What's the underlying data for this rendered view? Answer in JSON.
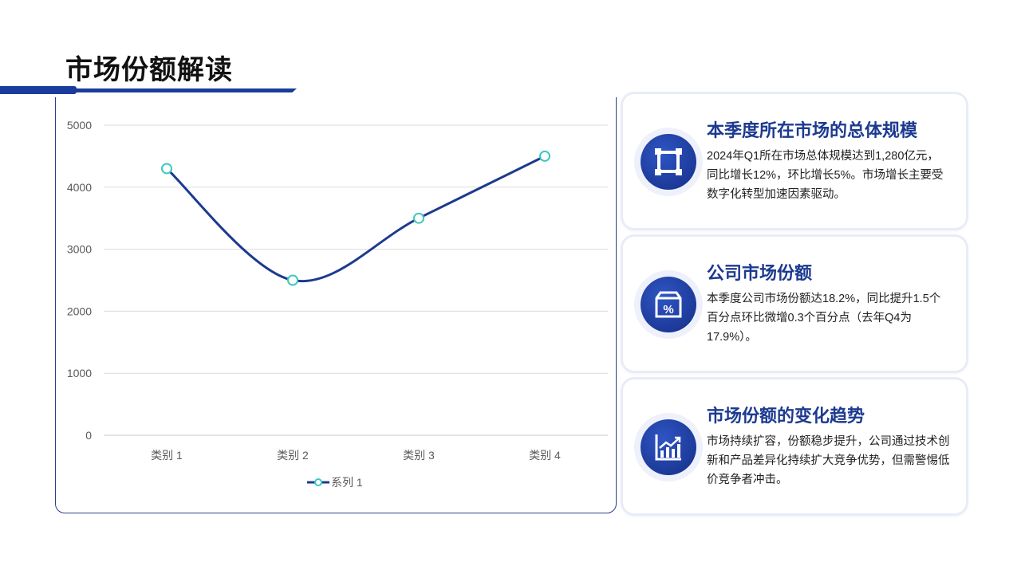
{
  "title": "市场份额解读",
  "chart_data": {
    "type": "line",
    "categories": [
      "类别 1",
      "类别 2",
      "类别 3",
      "类别 4"
    ],
    "series": [
      {
        "name": "系列 1",
        "values": [
          4300,
          2500,
          3500,
          4500
        ]
      }
    ],
    "ylim": [
      0,
      5000
    ],
    "yticks": [
      0,
      1000,
      2000,
      3000,
      4000,
      5000
    ],
    "grid": true,
    "smooth": true,
    "legend": "bottom",
    "line_color": "#1c3a8f",
    "marker_color": "#3cc8c0"
  },
  "cards": [
    {
      "title": "本季度所在市场的总体规模",
      "text": "2024年Q1所在市场总体规模达到1,280亿元，同比增长12%，环比增长5%。市场增长主要受数字化转型加速因素驱动。",
      "icon": "frame-icon"
    },
    {
      "title": "公司市场份额",
      "text": "本季度公司市场份额达18.2%，同比提升1.5个百分点环比微增0.3个百分点（去年Q4为17.9%）。",
      "icon": "percent-box-icon"
    },
    {
      "title": "市场份额的变化趋势",
      "text": "市场持续扩容，份额稳步提升，公司通过技术创新和产品差异化持续扩大竞争优势，但需警惕低价竞争者冲击。",
      "icon": "growth-chart-icon"
    }
  ]
}
